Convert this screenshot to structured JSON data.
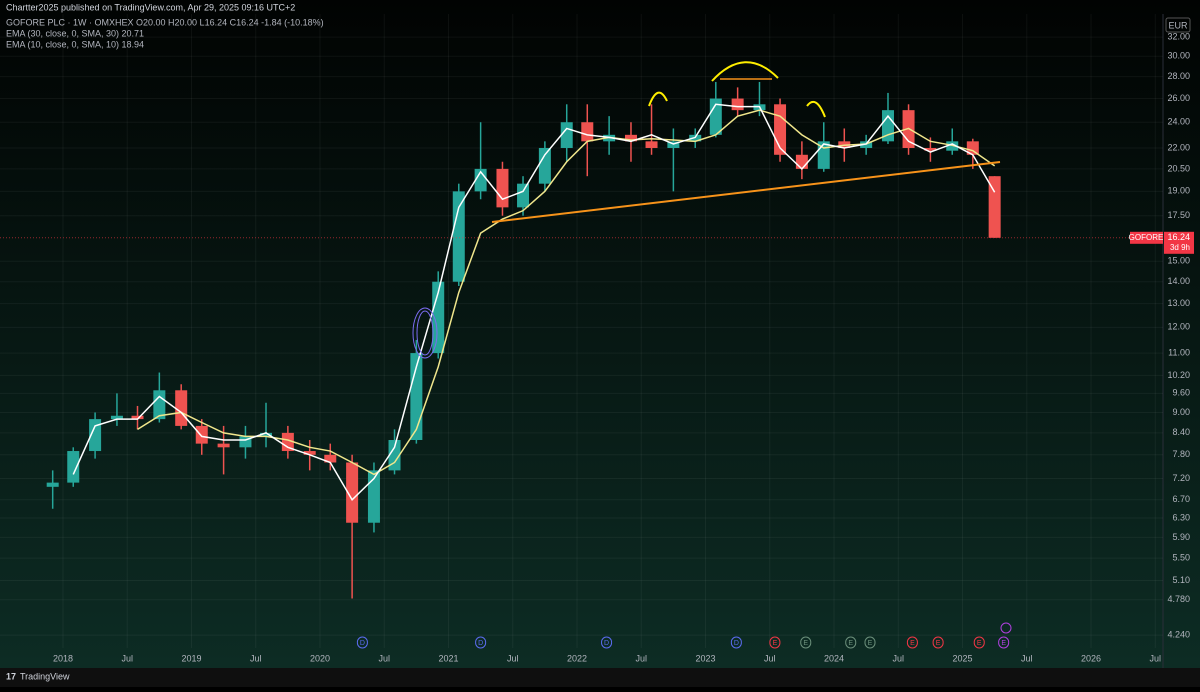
{
  "header": {
    "publisher": "Chartter2025 published on TradingView.com, Apr 29, 2025 09:16 UTC+2",
    "legend": [
      "GOFORE PLC · 1W · OMXHEX  O20.00 H20.00 L16.24 C16.24 -1.84 (-10.18%)",
      "EMA (30, close, 0, SMA, 30) 20.71",
      "EMA (10, close, 0, SMA, 10) 18.94"
    ],
    "currency": "EUR"
  },
  "chart_data": {
    "type": "candlestick",
    "log_scale": true,
    "grid": true,
    "up_color": "#26a69a",
    "down_color": "#ef5350",
    "x": [
      2017.92,
      2018.08,
      2018.25,
      2018.42,
      2018.58,
      2018.75,
      2018.92,
      2019.08,
      2019.25,
      2019.42,
      2019.58,
      2019.75,
      2019.92,
      2020.08,
      2020.25,
      2020.42,
      2020.58,
      2020.75,
      2020.92,
      2021.08,
      2021.25,
      2021.42,
      2021.58,
      2021.75,
      2021.92,
      2022.08,
      2022.25,
      2022.42,
      2022.58,
      2022.75,
      2022.92,
      2023.08,
      2023.25,
      2023.42,
      2023.58,
      2023.75,
      2023.92,
      2024.08,
      2024.25,
      2024.42,
      2024.58,
      2024.75,
      2024.92,
      2025.08,
      2025.25
    ],
    "open": [
      7.0,
      7.1,
      7.9,
      8.8,
      8.9,
      8.8,
      9.7,
      8.6,
      8.1,
      8.0,
      8.3,
      8.4,
      7.9,
      7.8,
      7.6,
      6.2,
      7.4,
      8.2,
      11.0,
      14.0,
      19.0,
      20.5,
      18.0,
      19.5,
      22.0,
      24.0,
      22.5,
      23.0,
      22.5,
      22.0,
      22.5,
      23.0,
      26.0,
      25.0,
      25.5,
      21.5,
      20.5,
      22.5,
      22.0,
      22.5,
      25.0,
      22.0,
      21.8,
      22.5,
      20.0
    ],
    "high": [
      7.4,
      8.0,
      9.0,
      9.6,
      9.2,
      10.3,
      9.9,
      8.8,
      8.6,
      8.6,
      9.3,
      8.6,
      8.2,
      8.1,
      7.8,
      7.6,
      8.5,
      11.5,
      14.5,
      19.5,
      24.0,
      21.0,
      20.0,
      22.5,
      25.5,
      25.5,
      24.5,
      24.0,
      25.5,
      23.5,
      23.5,
      27.5,
      27.0,
      27.5,
      26.0,
      22.5,
      24.0,
      23.5,
      23.0,
      26.5,
      25.5,
      22.8,
      23.5,
      22.7,
      20.0
    ],
    "low": [
      6.5,
      7.0,
      7.7,
      8.6,
      8.5,
      8.7,
      8.5,
      7.8,
      7.3,
      7.7,
      8.0,
      7.7,
      7.4,
      7.4,
      4.8,
      6.0,
      7.3,
      8.1,
      10.8,
      13.8,
      18.5,
      17.5,
      17.5,
      19.0,
      21.0,
      20.0,
      21.5,
      21.0,
      21.5,
      19.0,
      22.0,
      22.8,
      24.5,
      24.5,
      21.0,
      19.8,
      20.3,
      21.0,
      21.5,
      22.3,
      21.5,
      21.0,
      21.5,
      20.5,
      16.24
    ],
    "close": [
      7.1,
      7.9,
      8.8,
      8.9,
      8.8,
      9.7,
      8.6,
      8.1,
      8.0,
      8.3,
      8.4,
      7.9,
      7.8,
      7.6,
      6.2,
      7.4,
      8.2,
      11.0,
      14.0,
      19.0,
      20.5,
      18.0,
      19.5,
      22.0,
      24.0,
      22.5,
      23.0,
      22.5,
      22.0,
      22.5,
      23.0,
      26.0,
      25.0,
      25.5,
      21.5,
      20.5,
      22.5,
      22.0,
      22.5,
      25.0,
      22.0,
      21.8,
      22.5,
      21.5,
      16.24
    ],
    "series": [
      {
        "name": "EMA (30, close, 0, SMA, 30)",
        "color": "#f0e68c",
        "values": [
          null,
          null,
          null,
          null,
          8.5,
          8.9,
          9.0,
          8.7,
          8.4,
          8.3,
          8.3,
          8.2,
          8.0,
          7.9,
          7.6,
          7.3,
          7.6,
          8.5,
          10.5,
          13.5,
          16.5,
          17.3,
          17.8,
          19.0,
          21.0,
          22.5,
          22.8,
          22.6,
          22.7,
          22.6,
          22.5,
          23.0,
          24.5,
          25.0,
          24.5,
          23.0,
          22.0,
          22.2,
          22.3,
          23.0,
          23.5,
          22.5,
          22.2,
          21.8,
          20.71
        ]
      },
      {
        "name": "EMA (10, close, 0, SMA, 10)",
        "color": "#ffffff",
        "values": [
          null,
          7.3,
          8.6,
          8.8,
          8.8,
          9.5,
          9.0,
          8.3,
          8.2,
          8.2,
          8.4,
          8.0,
          7.8,
          7.6,
          6.7,
          7.2,
          8.0,
          10.5,
          13.5,
          18.0,
          20.3,
          18.5,
          19.0,
          21.5,
          23.5,
          23.0,
          22.8,
          22.5,
          23.0,
          22.3,
          22.8,
          25.5,
          25.3,
          25.3,
          22.0,
          20.5,
          22.3,
          22.0,
          22.3,
          24.5,
          22.5,
          21.7,
          22.3,
          21.5,
          18.94
        ]
      }
    ],
    "xlim": [
      2017.51,
      2026.56
    ],
    "xticks": [
      {
        "value": 2018,
        "label": "2018"
      },
      {
        "value": 2018.5,
        "label": "Jul"
      },
      {
        "value": 2019,
        "label": "2019"
      },
      {
        "value": 2019.5,
        "label": "Jul"
      },
      {
        "value": 2020,
        "label": "2020"
      },
      {
        "value": 2020.5,
        "label": "Jul"
      },
      {
        "value": 2021,
        "label": "2021"
      },
      {
        "value": 2021.5,
        "label": "Jul"
      },
      {
        "value": 2022,
        "label": "2022"
      },
      {
        "value": 2022.5,
        "label": "Jul"
      },
      {
        "value": 2023,
        "label": "2023"
      },
      {
        "value": 2023.5,
        "label": "Jul"
      },
      {
        "value": 2024,
        "label": "2024"
      },
      {
        "value": 2024.5,
        "label": "Jul"
      },
      {
        "value": 2025,
        "label": "2025"
      },
      {
        "value": 2025.5,
        "label": "Jul"
      },
      {
        "value": 2026,
        "label": "2026"
      },
      {
        "value": 2026.5,
        "label": "Jul"
      }
    ],
    "ylim": [
      4.06,
      34.6
    ],
    "yticks": [
      {
        "value": 32,
        "label": "32.00"
      },
      {
        "value": 30,
        "label": "30.00"
      },
      {
        "value": 28,
        "label": "28.00"
      },
      {
        "value": 26,
        "label": "26.00"
      },
      {
        "value": 24,
        "label": "24.00"
      },
      {
        "value": 22,
        "label": "22.00"
      },
      {
        "value": 20.5,
        "label": "20.50"
      },
      {
        "value": 19,
        "label": "19.00"
      },
      {
        "value": 17.5,
        "label": "17.50"
      },
      {
        "value": 15,
        "label": "15.00"
      },
      {
        "value": 14,
        "label": "14.00"
      },
      {
        "value": 13,
        "label": "13.00"
      },
      {
        "value": 12,
        "label": "12.00"
      },
      {
        "value": 11,
        "label": "11.00"
      },
      {
        "value": 10.2,
        "label": "10.20"
      },
      {
        "value": 9.6,
        "label": "9.60"
      },
      {
        "value": 9,
        "label": "9.00"
      },
      {
        "value": 8.4,
        "label": "8.40"
      },
      {
        "value": 7.8,
        "label": "7.80"
      },
      {
        "value": 7.2,
        "label": "7.20"
      },
      {
        "value": 6.7,
        "label": "6.70"
      },
      {
        "value": 6.3,
        "label": "6.30"
      },
      {
        "value": 5.9,
        "label": "5.90"
      },
      {
        "value": 5.5,
        "label": "5.50"
      },
      {
        "value": 5.1,
        "label": "5.10"
      },
      {
        "value": 4.78,
        "label": "4.780"
      },
      {
        "value": 4.24,
        "label": "4.240"
      }
    ],
    "price_tag": {
      "name": "GOFORE",
      "value": 16.24,
      "countdown": "3d 9h",
      "color": "#f23645"
    },
    "events": [
      {
        "x": 2020.33,
        "label": "D",
        "color": "#5b6cf0"
      },
      {
        "x": 2021.25,
        "label": "D",
        "color": "#5b6cf0"
      },
      {
        "x": 2022.23,
        "label": "D",
        "color": "#5b6cf0"
      },
      {
        "x": 2023.24,
        "label": "D",
        "color": "#5b6cf0"
      },
      {
        "x": 2023.54,
        "label": "E",
        "color": "#f23645"
      },
      {
        "x": 2023.78,
        "label": "E",
        "color": "#6b8f7b"
      },
      {
        "x": 2024.13,
        "label": "E",
        "color": "#6b8f7b"
      },
      {
        "x": 2024.28,
        "label": "E",
        "color": "#6b8f7b"
      },
      {
        "x": 2024.61,
        "label": "E",
        "color": "#f23645"
      },
      {
        "x": 2024.81,
        "label": "E",
        "color": "#f23645"
      },
      {
        "x": 2025.13,
        "label": "E",
        "color": "#f23645"
      },
      {
        "x": 2025.32,
        "label": "E",
        "color": "#b040e0"
      }
    ]
  },
  "footer": {
    "brand": "TradingView"
  }
}
